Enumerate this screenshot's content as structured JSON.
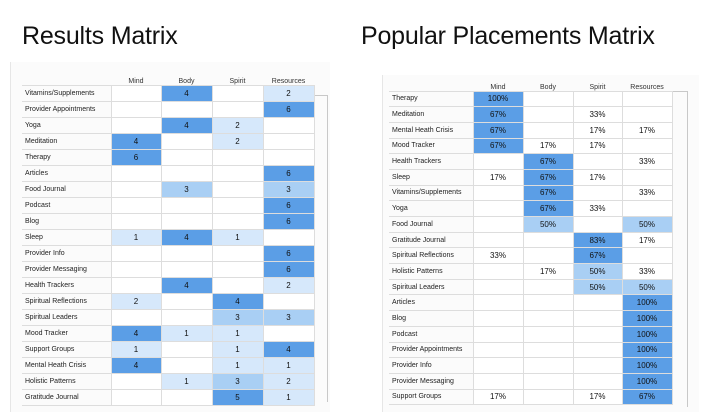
{
  "results_matrix": {
    "title": "Results Matrix",
    "columns": [
      "Mind",
      "Body",
      "Spirit",
      "Resources"
    ],
    "rows": [
      {
        "label": "Vitamins/Supplements",
        "values": [
          "",
          "4",
          "",
          "2"
        ]
      },
      {
        "label": "Provider Appointments",
        "values": [
          "",
          "",
          "",
          "6"
        ]
      },
      {
        "label": "Yoga",
        "values": [
          "",
          "4",
          "2",
          ""
        ]
      },
      {
        "label": "Meditation",
        "values": [
          "4",
          "",
          "2",
          ""
        ]
      },
      {
        "label": "Therapy",
        "values": [
          "6",
          "",
          "",
          ""
        ]
      },
      {
        "label": "Articles",
        "values": [
          "",
          "",
          "",
          "6"
        ]
      },
      {
        "label": "Food Journal",
        "values": [
          "",
          "3",
          "",
          "3"
        ]
      },
      {
        "label": "Podcast",
        "values": [
          "",
          "",
          "",
          "6"
        ]
      },
      {
        "label": "Blog",
        "values": [
          "",
          "",
          "",
          "6"
        ]
      },
      {
        "label": "Sleep",
        "values": [
          "1",
          "4",
          "1",
          ""
        ]
      },
      {
        "label": "Provider Info",
        "values": [
          "",
          "",
          "",
          "6"
        ]
      },
      {
        "label": "Provider Messaging",
        "values": [
          "",
          "",
          "",
          "6"
        ]
      },
      {
        "label": "Health Trackers",
        "values": [
          "",
          "4",
          "",
          "2"
        ]
      },
      {
        "label": "Spiritual Reflections",
        "values": [
          "2",
          "",
          "4",
          ""
        ]
      },
      {
        "label": "Spiritual Leaders",
        "values": [
          "",
          "",
          "3",
          "3"
        ]
      },
      {
        "label": "Mood Tracker",
        "values": [
          "4",
          "1",
          "1",
          ""
        ]
      },
      {
        "label": "Support Groups",
        "values": [
          "1",
          "",
          "1",
          "4"
        ]
      },
      {
        "label": "Mental Heath Crisis",
        "values": [
          "4",
          "",
          "1",
          "1"
        ]
      },
      {
        "label": "Holistic Patterns",
        "values": [
          "",
          "1",
          "3",
          "2"
        ]
      },
      {
        "label": "Gratitude Journal",
        "values": [
          "",
          "",
          "5",
          "1"
        ]
      }
    ]
  },
  "popular_placements_matrix": {
    "title": "Popular Placements Matrix",
    "columns": [
      "Mind",
      "Body",
      "Spirit",
      "Resources"
    ],
    "rows": [
      {
        "label": "Therapy",
        "values": [
          "100%",
          "",
          "",
          ""
        ]
      },
      {
        "label": "Meditation",
        "values": [
          "67%",
          "",
          "33%",
          ""
        ]
      },
      {
        "label": "Mental Heath Crisis",
        "values": [
          "67%",
          "",
          "17%",
          "17%"
        ]
      },
      {
        "label": "Mood Tracker",
        "values": [
          "67%",
          "17%",
          "17%",
          ""
        ]
      },
      {
        "label": "Health Trackers",
        "values": [
          "",
          "67%",
          "",
          "33%"
        ]
      },
      {
        "label": "Sleep",
        "values": [
          "17%",
          "67%",
          "17%",
          ""
        ]
      },
      {
        "label": "Vitamins/Supplements",
        "values": [
          "",
          "67%",
          "",
          "33%"
        ]
      },
      {
        "label": "Yoga",
        "values": [
          "",
          "67%",
          "33%",
          ""
        ]
      },
      {
        "label": "Food Journal",
        "values": [
          "",
          "50%",
          "",
          "50%"
        ]
      },
      {
        "label": "Gratitude Journal",
        "values": [
          "",
          "",
          "83%",
          "17%"
        ]
      },
      {
        "label": "Spiritual Reflections",
        "values": [
          "33%",
          "",
          "67%",
          ""
        ]
      },
      {
        "label": "Holistic Patterns",
        "values": [
          "",
          "17%",
          "50%",
          "33%"
        ]
      },
      {
        "label": "Spiritual Leaders",
        "values": [
          "",
          "",
          "50%",
          "50%"
        ]
      },
      {
        "label": "Articles",
        "values": [
          "",
          "",
          "",
          "100%"
        ]
      },
      {
        "label": "Blog",
        "values": [
          "",
          "",
          "",
          "100%"
        ]
      },
      {
        "label": "Podcast",
        "values": [
          "",
          "",
          "",
          "100%"
        ]
      },
      {
        "label": "Provider Appointments",
        "values": [
          "",
          "",
          "",
          "100%"
        ]
      },
      {
        "label": "Provider Info",
        "values": [
          "",
          "",
          "",
          "100%"
        ]
      },
      {
        "label": "Provider Messaging",
        "values": [
          "",
          "",
          "",
          "100%"
        ]
      },
      {
        "label": "Support Groups",
        "values": [
          "17%",
          "",
          "17%",
          "67%"
        ]
      }
    ]
  },
  "colors": {
    "highlight_strong": "#5b9ee6",
    "highlight_medium": "#a9cff4",
    "highlight_light": "#d6e8fb",
    "cell_plain": "#ffffff"
  }
}
